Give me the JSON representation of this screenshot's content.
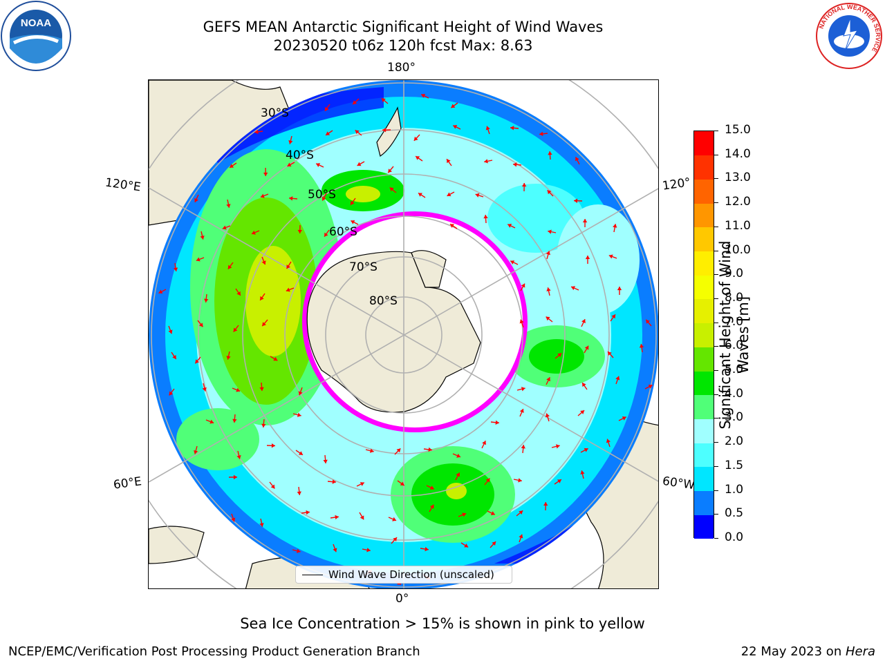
{
  "title": {
    "line1": "GEFS MEAN Antarctic Significant Height of Wind Waves",
    "line2": "20230520 t06z 120h fcst   Max: 8.63"
  },
  "map": {
    "projection": "south-polar-stereographic",
    "lon_labels": {
      "top": "180°",
      "bottom": "0°",
      "left_upper": "120°E",
      "left_lower": "60°E",
      "right_upper": "120°",
      "right_lower": "60°W"
    },
    "lat_labels": [
      "30°S",
      "40°S",
      "50°S",
      "60°S",
      "70°S",
      "80°S"
    ],
    "vector_color": "#ff0000",
    "land_color": "#efebd8",
    "grid_color": "#b0b0b0",
    "ice_colors": [
      "#ff00ff",
      "#ffff00"
    ]
  },
  "legend": {
    "label": "Wind Wave Direction (unscaled)"
  },
  "colorbar": {
    "label_line1": "Significant Height of Wind",
    "label_line2": "Waves [m]",
    "ticks": [
      "0.0",
      "0.5",
      "1.0",
      "1.5",
      "2.0",
      "3.0",
      "4.0",
      "5.0",
      "6.0",
      "7.0",
      "8.0",
      "9.0",
      "10.0",
      "11.0",
      "12.0",
      "13.0",
      "14.0",
      "15.0"
    ],
    "colors": [
      "#0000ff",
      "#0a7dff",
      "#00e6ff",
      "#4dffff",
      "#a0ffff",
      "#50ff78",
      "#00e600",
      "#64e600",
      "#c8f000",
      "#e6f000",
      "#f5ff00",
      "#ffee00",
      "#ffc800",
      "#ff9600",
      "#ff6400",
      "#ff3200",
      "#ff0000"
    ]
  },
  "notes": {
    "sea_ice": "Sea Ice Concentration > 15% is shown in pink to yellow"
  },
  "footer": {
    "left": "NCEP/EMC/Verification Post Processing Product Generation Branch",
    "date_prefix": "22 May 2023 on ",
    "host": "Hera"
  },
  "logos": {
    "left": "NOAA",
    "right": "NATIONAL WEATHER SERVICE"
  }
}
